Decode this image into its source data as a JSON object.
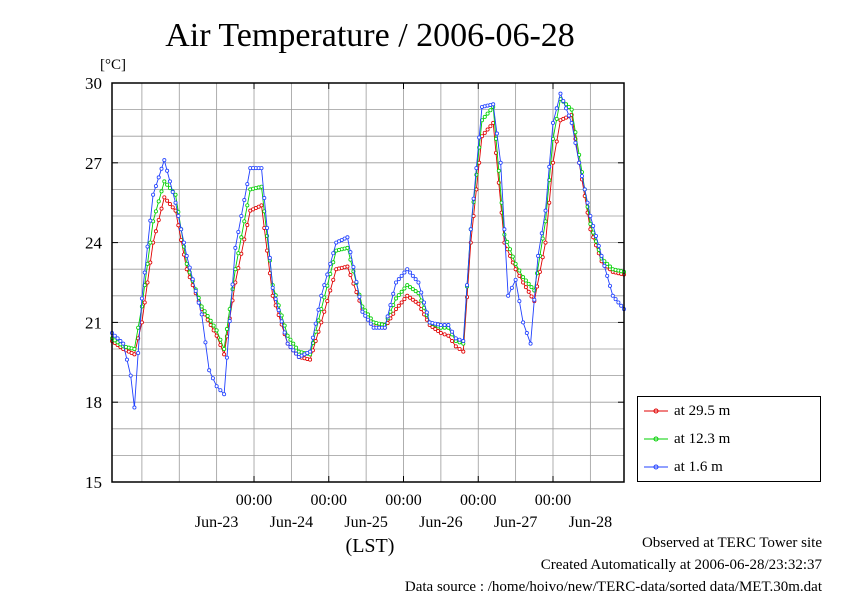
{
  "chart_data": {
    "type": "line",
    "title": "Air Temperature / 2006-06-28",
    "ylabel": "[°C]",
    "xlabel": "(LST)",
    "ylim": [
      15,
      30
    ],
    "yticks": [
      15,
      18,
      21,
      24,
      27,
      30
    ],
    "xlim": [
      -0.9,
      5.95
    ],
    "xticks": [
      {
        "x": 1,
        "time": "00:00",
        "date": "Jun-23"
      },
      {
        "x": 2,
        "time": "00:00",
        "date": "Jun-24"
      },
      {
        "x": 3,
        "time": "00:00",
        "date": "Jun-25"
      },
      {
        "x": 4,
        "time": "00:00",
        "date": "Jun-26"
      },
      {
        "x": 5,
        "time": "00:00",
        "date": "Jun-27"
      },
      {
        "x": 6,
        "time": "",
        "date": "Jun-28"
      }
    ],
    "grid": true,
    "legend_position": "bottom-right, outside plot",
    "x_units": "days from 2006-06-23 00:00 LST",
    "series": [
      {
        "name": "at 29.5 m",
        "color": "#e00000",
        "x": [
          -0.9,
          -0.75,
          -0.6,
          -0.5,
          -0.35,
          -0.2,
          -0.05,
          0.1,
          0.3,
          0.5,
          0.6,
          0.75,
          0.95,
          1.1,
          1.25,
          1.45,
          1.6,
          1.75,
          1.9,
          2.1,
          2.25,
          2.45,
          2.6,
          2.75,
          2.9,
          3.05,
          3.2,
          3.35,
          3.5,
          3.6,
          3.7,
          3.8,
          3.9,
          4.05,
          4.2,
          4.35,
          4.5,
          4.6,
          4.75,
          4.9,
          5.0,
          5.1,
          5.25,
          5.35,
          5.5,
          5.65,
          5.8,
          5.95
        ],
        "y": [
          20.3,
          20.0,
          19.8,
          21.0,
          24.0,
          25.7,
          25.2,
          23.0,
          21.5,
          20.5,
          19.8,
          22.5,
          25.2,
          25.4,
          22.0,
          20.2,
          19.7,
          19.6,
          21.0,
          23.0,
          23.1,
          21.5,
          20.9,
          20.8,
          21.5,
          22.0,
          21.7,
          20.9,
          20.6,
          20.5,
          20.1,
          19.9,
          24.0,
          28.0,
          28.5,
          24.0,
          23.0,
          22.5,
          21.8,
          24.0,
          27.0,
          28.6,
          28.8,
          27.0,
          24.5,
          23.3,
          22.9,
          22.8
        ]
      },
      {
        "name": "at 12.3 m",
        "color": "#00d000",
        "x": [
          -0.9,
          -0.75,
          -0.6,
          -0.5,
          -0.35,
          -0.2,
          -0.05,
          0.1,
          0.3,
          0.5,
          0.6,
          0.75,
          0.95,
          1.1,
          1.25,
          1.45,
          1.6,
          1.75,
          1.9,
          2.1,
          2.25,
          2.45,
          2.6,
          2.75,
          2.9,
          3.05,
          3.2,
          3.35,
          3.5,
          3.6,
          3.7,
          3.8,
          3.9,
          4.05,
          4.2,
          4.35,
          4.5,
          4.6,
          4.75,
          4.9,
          5.0,
          5.1,
          5.25,
          5.35,
          5.5,
          5.65,
          5.8,
          5.95
        ],
        "y": [
          20.4,
          20.1,
          20.0,
          21.6,
          24.8,
          26.3,
          25.8,
          23.2,
          21.6,
          20.7,
          20.0,
          23.0,
          26.0,
          26.1,
          22.4,
          20.5,
          19.9,
          19.8,
          21.5,
          23.7,
          23.8,
          21.6,
          21.0,
          20.9,
          21.9,
          22.4,
          22.1,
          21.0,
          20.8,
          20.8,
          20.3,
          20.2,
          24.5,
          28.6,
          29.1,
          24.3,
          23.2,
          22.7,
          22.2,
          24.8,
          27.9,
          29.4,
          29.0,
          27.3,
          24.7,
          23.4,
          23.0,
          22.9
        ]
      },
      {
        "name": "at 1.6 m",
        "color": "#2040ff",
        "x": [
          -0.9,
          -0.75,
          -0.65,
          -0.6,
          -0.5,
          -0.35,
          -0.2,
          -0.05,
          0.1,
          0.3,
          0.4,
          0.5,
          0.6,
          0.75,
          0.95,
          1.1,
          1.25,
          1.45,
          1.6,
          1.75,
          1.9,
          2.1,
          2.25,
          2.45,
          2.6,
          2.75,
          2.9,
          3.05,
          3.2,
          3.35,
          3.5,
          3.6,
          3.7,
          3.8,
          3.9,
          4.05,
          4.2,
          4.3,
          4.4,
          4.5,
          4.6,
          4.7,
          4.8,
          4.9,
          5.0,
          5.1,
          5.25,
          5.35,
          5.5,
          5.65,
          5.8,
          5.95
        ],
        "y": [
          20.6,
          20.2,
          19.0,
          17.8,
          21.9,
          25.8,
          27.1,
          25.5,
          23.5,
          21.3,
          19.2,
          18.6,
          18.3,
          23.8,
          26.8,
          26.8,
          22.3,
          20.2,
          19.7,
          19.9,
          22.0,
          24.0,
          24.2,
          21.4,
          20.8,
          20.8,
          22.5,
          23.0,
          22.5,
          21.0,
          20.9,
          20.9,
          20.4,
          20.3,
          24.5,
          29.1,
          29.2,
          27.0,
          22.0,
          22.6,
          21.0,
          20.2,
          23.5,
          25.2,
          28.5,
          29.6,
          28.5,
          27.0,
          25.0,
          23.5,
          22.0,
          21.5
        ]
      }
    ]
  },
  "footer": {
    "site": "Observed at TERC Tower site",
    "created": "Created Automatically at 2006-06-28/23:32:37",
    "source": "Data source : /home/hoivo/new/TERC-data/sorted  data/MET.30m.dat"
  }
}
